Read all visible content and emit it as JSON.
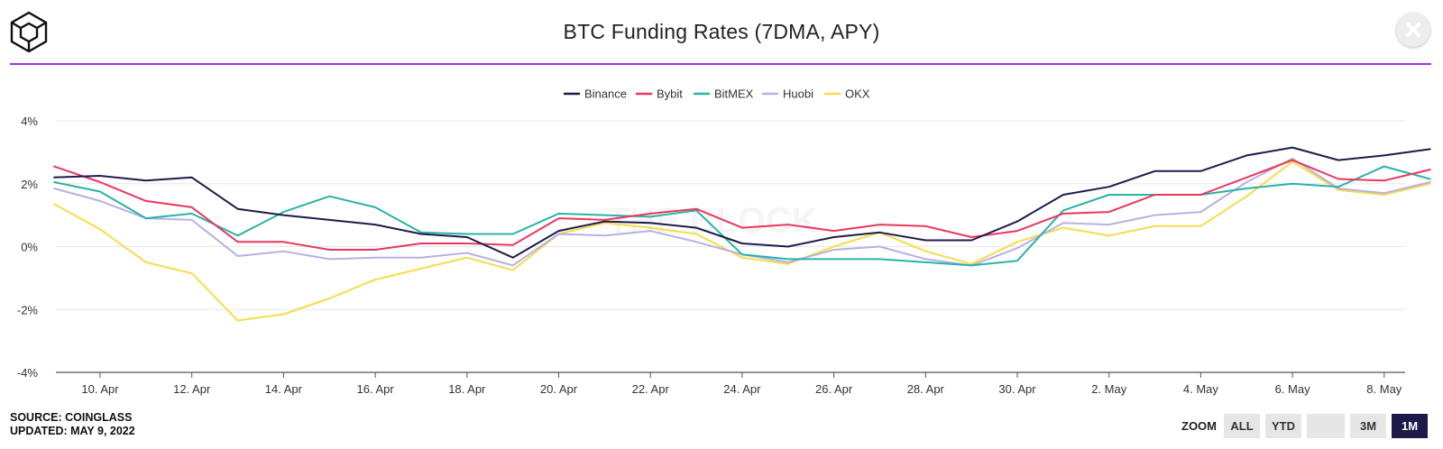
{
  "header": {
    "title": "BTC Funding Rates (7DMA, APY)",
    "close_icon": "close-icon",
    "logo_icon": "the-block-logo-icon"
  },
  "watermark": "THE BLOCK",
  "footer": {
    "source": "SOURCE: COINGLASS",
    "updated": "UPDATED: MAY 9, 2022"
  },
  "zoom": {
    "label": "ZOOM",
    "buttons": [
      "ALL",
      "YTD",
      "",
      "3M",
      "1M"
    ],
    "active": "1M"
  },
  "colors": {
    "accent": "#a334e0",
    "Binance": "#1e1b4b",
    "Bybit": "#e8375f",
    "BitMEX": "#2ab3a6",
    "Huobi": "#b9b0e0",
    "OKX": "#f7dc4a"
  },
  "chart_data": {
    "type": "line",
    "title": "BTC Funding Rates (7DMA, APY)",
    "x": [
      "9 Apr",
      "10 Apr",
      "11 Apr",
      "12 Apr",
      "13 Apr",
      "14 Apr",
      "15 Apr",
      "16 Apr",
      "17 Apr",
      "18 Apr",
      "19 Apr",
      "20 Apr",
      "21 Apr",
      "22 Apr",
      "23 Apr",
      "24 Apr",
      "25 Apr",
      "26 Apr",
      "27 Apr",
      "28 Apr",
      "29 Apr",
      "30 Apr",
      "1 May",
      "2 May",
      "3 May",
      "4 May",
      "5 May",
      "6 May",
      "7 May",
      "8 May",
      "9 May"
    ],
    "x_ticks": [
      "10. Apr",
      "12. Apr",
      "14. Apr",
      "16. Apr",
      "18. Apr",
      "20. Apr",
      "22. Apr",
      "24. Apr",
      "26. Apr",
      "28. Apr",
      "30. Apr",
      "2. May",
      "4. May",
      "6. May",
      "8. May"
    ],
    "y_ticks": [
      "4%",
      "2%",
      "0%",
      "-2%",
      "-4%"
    ],
    "ylim": [
      -4,
      4
    ],
    "y_unit": "%",
    "grid": true,
    "legend_position": "top-center",
    "series": [
      {
        "name": "Binance",
        "values": [
          2.2,
          2.25,
          2.1,
          2.2,
          1.2,
          1.0,
          0.85,
          0.7,
          0.4,
          0.3,
          -0.35,
          0.5,
          0.8,
          0.75,
          0.6,
          0.1,
          0.0,
          0.3,
          0.45,
          0.2,
          0.2,
          0.8,
          1.65,
          1.9,
          2.4,
          2.4,
          2.9,
          3.15,
          2.75,
          2.9,
          3.1
        ]
      },
      {
        "name": "Bybit",
        "values": [
          2.55,
          2.05,
          1.45,
          1.25,
          0.15,
          0.15,
          -0.1,
          -0.1,
          0.1,
          0.1,
          0.05,
          0.9,
          0.85,
          1.05,
          1.2,
          0.6,
          0.7,
          0.5,
          0.7,
          0.65,
          0.3,
          0.5,
          1.05,
          1.1,
          1.65,
          1.65,
          2.2,
          2.75,
          2.15,
          2.1,
          2.45
        ]
      },
      {
        "name": "BitMEX",
        "values": [
          2.05,
          1.75,
          0.9,
          1.05,
          0.35,
          1.1,
          1.6,
          1.25,
          0.45,
          0.4,
          0.4,
          1.05,
          1.0,
          0.95,
          1.15,
          -0.25,
          -0.4,
          -0.4,
          -0.4,
          -0.5,
          -0.6,
          -0.45,
          1.15,
          1.65,
          1.65,
          1.65,
          1.85,
          2.0,
          1.9,
          2.55,
          2.15
        ]
      },
      {
        "name": "Huobi",
        "values": [
          1.85,
          1.45,
          0.9,
          0.85,
          -0.3,
          -0.15,
          -0.4,
          -0.35,
          -0.35,
          -0.2,
          -0.6,
          0.4,
          0.35,
          0.5,
          0.15,
          -0.25,
          -0.5,
          -0.1,
          0.0,
          -0.4,
          -0.6,
          -0.05,
          0.75,
          0.7,
          1.0,
          1.1,
          2.05,
          2.8,
          1.85,
          1.7,
          2.05
        ]
      },
      {
        "name": "OKX",
        "values": [
          1.35,
          0.55,
          -0.5,
          -0.85,
          -2.35,
          -2.15,
          -1.65,
          -1.05,
          -0.7,
          -0.35,
          -0.75,
          0.4,
          0.75,
          0.6,
          0.4,
          -0.35,
          -0.55,
          0.0,
          0.45,
          -0.15,
          -0.55,
          0.15,
          0.6,
          0.35,
          0.65,
          0.65,
          1.6,
          2.7,
          1.8,
          1.65,
          2.0
        ]
      }
    ]
  }
}
